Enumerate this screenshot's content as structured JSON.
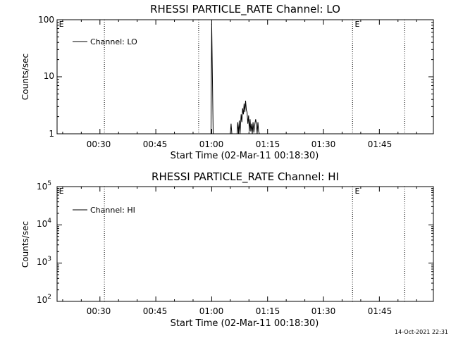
{
  "chart_data": [
    {
      "type": "line",
      "title": "RHESSI PARTICLE_RATE Channel: LO",
      "xlabel": "Start Time (02-Mar-11 00:18:30)",
      "ylabel": "Counts/sec",
      "xlim_minutes": [
        18.5,
        119.5
      ],
      "ylim": [
        1,
        100
      ],
      "yscale": "log",
      "x_tick_labels": [
        "00:30",
        "00:45",
        "01:00",
        "01:15",
        "01:30",
        "01:45"
      ],
      "x_tick_minutes": [
        30,
        45,
        60,
        75,
        90,
        105
      ],
      "y_tick_labels": [
        "1",
        "10",
        "100"
      ],
      "y_tick_values": [
        1,
        10,
        100
      ],
      "legend": "Channel: LO",
      "legend_position": "top-left",
      "vlines_minutes": [
        31.2,
        56.5,
        97.8,
        111.8
      ],
      "vline_style": "dotted",
      "eclipse_marks": [
        {
          "label": "E",
          "minute": 19.0
        },
        {
          "label": "E",
          "minute": 98.4
        }
      ],
      "series": [
        {
          "name": "Channel: LO",
          "x": [
            59.8,
            60.0,
            60.4,
            60.8,
            65.0,
            65.2,
            65.4,
            65.8,
            66.8,
            67.0,
            67.2,
            67.4,
            67.6,
            67.9,
            68.1,
            68.3,
            68.5,
            68.7,
            68.9,
            69.1,
            69.3,
            69.5,
            69.7,
            69.9,
            70.1,
            70.3,
            70.5,
            70.7,
            70.9,
            71.1,
            71.3,
            71.6,
            71.8,
            72.0,
            72.2,
            72.4,
            72.6,
            72.8,
            73.0
          ],
          "y": [
            1,
            85,
            1,
            1,
            1,
            1.5,
            1,
            1,
            1,
            1.6,
            1,
            1.7,
            1,
            2.2,
            1.6,
            2.8,
            2.2,
            3.4,
            2.4,
            3.8,
            2.6,
            2.4,
            1.5,
            2.1,
            1.1,
            1.8,
            1.1,
            1.5,
            1,
            1.6,
            1.05,
            1.5,
            1.8,
            1.5,
            1.0,
            1.6,
            1.1,
            1,
            1
          ]
        }
      ]
    },
    {
      "type": "line",
      "title": "RHESSI PARTICLE_RATE Channel: HI",
      "xlabel": "Start Time (02-Mar-11 00:18:30)",
      "ylabel": "Counts/sec",
      "xlim_minutes": [
        18.5,
        119.5
      ],
      "ylim": [
        100,
        100000
      ],
      "yscale": "log",
      "x_tick_labels": [
        "00:30",
        "00:45",
        "01:00",
        "01:15",
        "01:30",
        "01:45"
      ],
      "x_tick_minutes": [
        30,
        45,
        60,
        75,
        90,
        105
      ],
      "y_tick_values": [
        100,
        1000,
        10000,
        100000
      ],
      "y_tick_labels": [
        {
          "base": "10",
          "exp": "2"
        },
        {
          "base": "10",
          "exp": "3"
        },
        {
          "base": "10",
          "exp": "4"
        },
        {
          "base": "10",
          "exp": "5"
        }
      ],
      "legend": "Channel: HI",
      "legend_position": "top-left",
      "vlines_minutes": [
        31.2,
        97.8,
        111.8
      ],
      "vline_style": "dotted",
      "eclipse_marks": [
        {
          "label": "E",
          "minute": 19.0
        },
        {
          "label": "E",
          "minute": 98.4
        }
      ],
      "series": [
        {
          "name": "Channel: HI",
          "x": [],
          "y": []
        }
      ]
    }
  ],
  "timestamp": "14-Oct-2021 22:31"
}
